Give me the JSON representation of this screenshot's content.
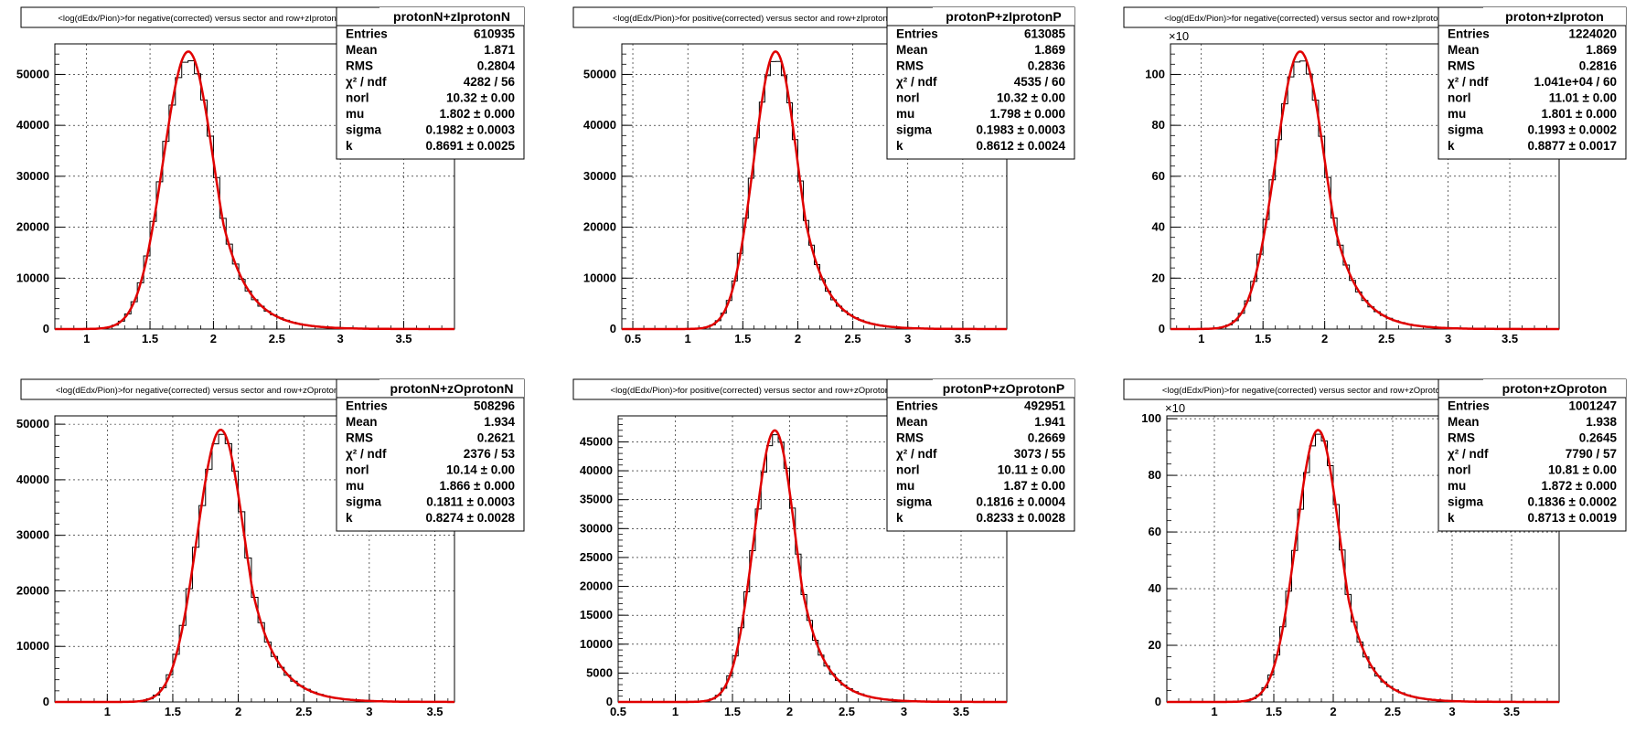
{
  "chart_data": [
    {
      "type": "bar",
      "title": "<log(dEdx/Pion)>for negative(corrected) versus sector and row+zIprotonN",
      "stats_name": "protonN+zIprotonN",
      "stats": [
        [
          "Entries",
          "610935"
        ],
        [
          "Mean",
          "1.871"
        ],
        [
          "RMS",
          "0.2804"
        ],
        [
          "χ² / ndf",
          "4282 / 56"
        ],
        [
          "norl",
          "10.32 ± 0.00"
        ],
        [
          "mu",
          "1.802 ± 0.000"
        ],
        [
          "sigma",
          "0.1982 ± 0.0003"
        ],
        [
          "k",
          "0.8691 ± 0.0025"
        ]
      ],
      "xlim": [
        0.75,
        3.9
      ],
      "ylim": [
        0,
        56000
      ],
      "xticks": [
        "1",
        "1.5",
        "2",
        "2.5",
        "3",
        "3.5"
      ],
      "yticks": [
        "0",
        "10000",
        "20000",
        "30000",
        "40000",
        "50000"
      ],
      "multiplier": "",
      "fit": {
        "norl": 10.32,
        "mu": 1.802,
        "sigma": 0.1982,
        "k": 0.8691,
        "peak": 54500
      }
    },
    {
      "type": "bar",
      "title": "<log(dEdx/Pion)>for positive(corrected) versus sector and row+zIprotonP",
      "stats_name": "protonP+zIprotonP",
      "stats": [
        [
          "Entries",
          "613085"
        ],
        [
          "Mean",
          "1.869"
        ],
        [
          "RMS",
          "0.2836"
        ],
        [
          "χ² / ndf",
          "4535 / 60"
        ],
        [
          "norl",
          "10.32 ± 0.00"
        ],
        [
          "mu",
          "1.798 ± 0.000"
        ],
        [
          "sigma",
          "0.1983 ± 0.0003"
        ],
        [
          "k",
          "0.8612 ± 0.0024"
        ]
      ],
      "xlim": [
        0.4,
        3.9
      ],
      "ylim": [
        0,
        56000
      ],
      "xticks": [
        "0.5",
        "1",
        "1.5",
        "2",
        "2.5",
        "3",
        "3.5"
      ],
      "yticks": [
        "0",
        "10000",
        "20000",
        "30000",
        "40000",
        "50000"
      ],
      "multiplier": "",
      "fit": {
        "norl": 10.32,
        "mu": 1.798,
        "sigma": 0.1983,
        "k": 0.8612,
        "peak": 54500
      }
    },
    {
      "type": "bar",
      "title": "<log(dEdx/Pion)>for negative(corrected) versus sector and row+zIproton",
      "stats_name": "proton+zIproton",
      "stats": [
        [
          "Entries",
          "1224020"
        ],
        [
          "Mean",
          "1.869"
        ],
        [
          "RMS",
          "0.2816"
        ],
        [
          "χ² / ndf",
          "1.041e+04 / 60"
        ],
        [
          "norl",
          "11.01 ± 0.00"
        ],
        [
          "mu",
          "1.801 ± 0.000"
        ],
        [
          "sigma",
          "0.1993 ± 0.0002"
        ],
        [
          "k",
          "0.8877 ± 0.0017"
        ]
      ],
      "xlim": [
        0.75,
        3.9
      ],
      "ylim": [
        0,
        112
      ],
      "xticks": [
        "1",
        "1.5",
        "2",
        "2.5",
        "3",
        "3.5"
      ],
      "yticks": [
        "0",
        "20",
        "40",
        "60",
        "80",
        "100"
      ],
      "multiplier": "×10",
      "fit": {
        "norl": 11.01,
        "mu": 1.801,
        "sigma": 0.1993,
        "k": 0.8877,
        "peak": 109
      }
    },
    {
      "type": "bar",
      "title": "<log(dEdx/Pion)>for negative(corrected) versus sector and row+zOprotonN",
      "stats_name": "protonN+zOprotonN",
      "stats": [
        [
          "Entries",
          "508296"
        ],
        [
          "Mean",
          "1.934"
        ],
        [
          "RMS",
          "0.2621"
        ],
        [
          "χ² / ndf",
          "2376 / 53"
        ],
        [
          "norl",
          "10.14 ± 0.00"
        ],
        [
          "mu",
          "1.866 ± 0.000"
        ],
        [
          "sigma",
          "0.1811 ± 0.0003"
        ],
        [
          "k",
          "0.8274 ± 0.0028"
        ]
      ],
      "xlim": [
        0.6,
        3.65
      ],
      "ylim": [
        0,
        51500
      ],
      "xticks": [
        "1",
        "1.5",
        "2",
        "2.5",
        "3",
        "3.5"
      ],
      "yticks": [
        "0",
        "10000",
        "20000",
        "30000",
        "40000",
        "50000"
      ],
      "multiplier": "",
      "fit": {
        "norl": 10.14,
        "mu": 1.866,
        "sigma": 0.1811,
        "k": 0.8274,
        "peak": 49000
      }
    },
    {
      "type": "bar",
      "title": "<log(dEdx/Pion)>for positive(corrected) versus sector and row+zOprotonP",
      "stats_name": "protonP+zOprotonP",
      "stats": [
        [
          "Entries",
          "492951"
        ],
        [
          "Mean",
          "1.941"
        ],
        [
          "RMS",
          "0.2669"
        ],
        [
          "χ² / ndf",
          "3073 / 55"
        ],
        [
          "norl",
          "10.11 ± 0.00"
        ],
        [
          "mu",
          "1.87 ± 0.00"
        ],
        [
          "sigma",
          "0.1816 ± 0.0004"
        ],
        [
          "k",
          "0.8233 ± 0.0028"
        ]
      ],
      "xlim": [
        0.5,
        3.9
      ],
      "ylim": [
        0,
        49500
      ],
      "xticks": [
        "0.5",
        "1",
        "1.5",
        "2",
        "2.5",
        "3",
        "3.5"
      ],
      "yticks": [
        "0",
        "5000",
        "10000",
        "15000",
        "20000",
        "25000",
        "30000",
        "35000",
        "40000",
        "45000"
      ],
      "multiplier": "",
      "fit": {
        "norl": 10.11,
        "mu": 1.87,
        "sigma": 0.1816,
        "k": 0.8233,
        "peak": 47000
      }
    },
    {
      "type": "bar",
      "title": "<log(dEdx/Pion)>for negative(corrected) versus sector and row+zOproton",
      "stats_name": "proton+zOproton",
      "stats": [
        [
          "Entries",
          "1001247"
        ],
        [
          "Mean",
          "1.938"
        ],
        [
          "RMS",
          "0.2645"
        ],
        [
          "χ² / ndf",
          "7790 / 57"
        ],
        [
          "norl",
          "10.81 ± 0.00"
        ],
        [
          "mu",
          "1.872 ± 0.000"
        ],
        [
          "sigma",
          "0.1836 ± 0.0002"
        ],
        [
          "k",
          "0.8713 ± 0.0019"
        ]
      ],
      "xlim": [
        0.6,
        3.9
      ],
      "ylim": [
        0,
        101
      ],
      "xticks": [
        "1",
        "1.5",
        "2",
        "2.5",
        "3",
        "3.5"
      ],
      "yticks": [
        "0",
        "20",
        "40",
        "60",
        "80",
        "100"
      ],
      "multiplier": "×10",
      "fit": {
        "norl": 10.81,
        "mu": 1.872,
        "sigma": 0.1836,
        "k": 0.8713,
        "peak": 96
      }
    }
  ]
}
